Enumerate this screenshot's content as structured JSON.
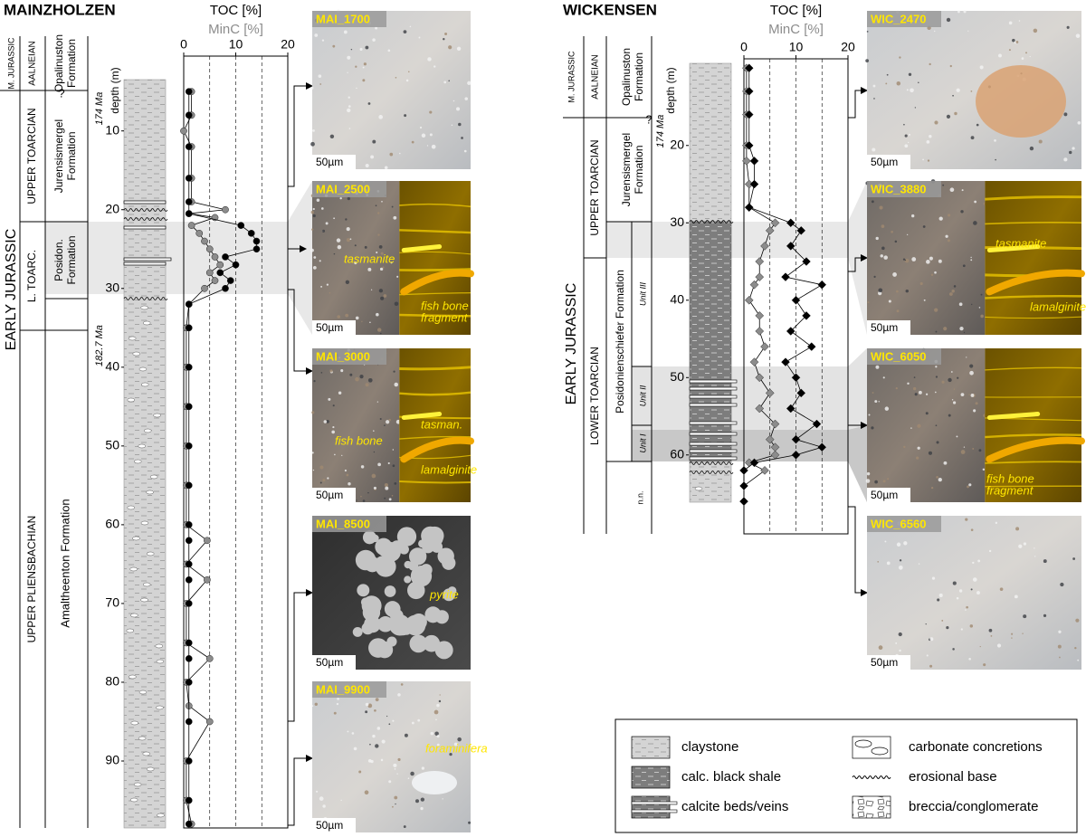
{
  "sites": [
    {
      "title": "MAINZHOLZEN",
      "strat": [
        "M. JURASSIC",
        "EARLY  JURASSIC",
        "AALNEIAN",
        "UPPER TOARCIAN",
        "L. TOARC.",
        "UPPER PLIENSBACHIAN",
        [
          "Opalinuston",
          "Formation"
        ],
        [
          "Jurensismergel",
          "Formation"
        ],
        [
          "Posidon.",
          "Formation"
        ],
        "Amaltheenton Formation"
      ],
      "uncertain": "?",
      "ages": [
        "174 Ma",
        "182.7 Ma"
      ],
      "depth_label": "depth (m)",
      "depth_lim": [
        0.5,
        98.5
      ],
      "depth_ticks": [
        10,
        20,
        30,
        40,
        50,
        60,
        70,
        80,
        90
      ],
      "xlim": [
        0,
        20
      ],
      "xticks": [
        0,
        10,
        20
      ],
      "dashed_lines": [
        5,
        10,
        15
      ],
      "marker": "circle",
      "series": [
        {
          "label": "TOC [%]",
          "color": "#000000",
          "depth": [
            5,
            8,
            12,
            16,
            19,
            20.5,
            22,
            23,
            24,
            25,
            26,
            27,
            28,
            29,
            30,
            32,
            35,
            40,
            45,
            50,
            55,
            60,
            62,
            65,
            67,
            70,
            75,
            77,
            80,
            85,
            90,
            95,
            98
          ],
          "values": [
            1,
            1,
            1,
            1,
            1,
            1,
            11,
            13,
            14,
            14,
            8,
            10,
            7,
            9,
            8,
            1,
            1,
            1,
            1,
            1,
            1,
            1,
            1,
            1,
            1,
            1,
            1,
            1,
            1,
            1,
            1,
            1,
            1
          ]
        },
        {
          "label": "MinC [%]",
          "color": "#8c8c8c",
          "depth": [
            5,
            8,
            10,
            12,
            16,
            19,
            20,
            20.5,
            21,
            22,
            23,
            24,
            25,
            26,
            27,
            28,
            29,
            30,
            32,
            35,
            40,
            45,
            50,
            55,
            60,
            62,
            65,
            67,
            70,
            75,
            77,
            80,
            83,
            85,
            90,
            95,
            98
          ],
          "values": [
            1.5,
            1.5,
            0,
            1.5,
            1.5,
            1.5,
            8,
            1,
            6,
            1.5,
            3,
            4,
            5,
            6,
            7,
            5,
            6,
            4,
            1,
            0.5,
            0.5,
            0.5,
            0.5,
            0.5,
            0.5,
            4.5,
            0.5,
            4.5,
            0.5,
            0.5,
            5,
            0.5,
            1,
            5,
            0.5,
            0.5,
            1.5
          ]
        }
      ],
      "photos": [
        {
          "id": "MAI_1700",
          "scale": "50µm",
          "notes": []
        },
        {
          "id": "MAI_2500",
          "scale": "50µm",
          "notes": [
            "tasmanite",
            [
              "fish bone",
              "fragment"
            ]
          ]
        },
        {
          "id": "MAI_3000",
          "scale": "50µm",
          "notes": [
            "tasman.",
            "fish bone",
            "lamalginite"
          ]
        },
        {
          "id": "MAI_8500",
          "scale": "50µm",
          "notes": [
            "pyrite"
          ]
        },
        {
          "id": "MAI_9900",
          "scale": "50µm",
          "notes": [
            "foraminifera"
          ]
        }
      ]
    },
    {
      "title": "WICKENSEN",
      "strat": [
        "M. JURASSIC",
        "EARLY  JURASSIC",
        "AALNEIAN",
        "UPPER TOARCIAN",
        "LOWER TOARCIAN",
        [
          "Opalinuston",
          "Formation"
        ],
        [
          "Jurensismergel",
          "Formation"
        ],
        "Posidonienschiefer Formation",
        "n.n.",
        "Unit III",
        "Unit II",
        "Unit I"
      ],
      "uncertain": "?",
      "ages": [
        "174 Ma"
      ],
      "depth_label": "depth (m)",
      "depth_lim": [
        8.8,
        70.2
      ],
      "depth_ticks": [
        20,
        30,
        40,
        50,
        60
      ],
      "xlim": [
        0,
        20
      ],
      "xticks": [
        0,
        10,
        20
      ],
      "dashed_lines": [
        5,
        10,
        15
      ],
      "marker": "diamond",
      "series": [
        {
          "label": "TOC [%]",
          "color": "#000000",
          "depth": [
            10,
            13,
            16,
            20,
            22,
            25,
            28,
            30,
            31,
            33,
            35,
            37,
            38,
            40,
            42,
            44,
            46,
            48,
            50,
            52,
            54,
            56,
            58,
            59,
            60,
            61,
            62,
            64,
            66
          ],
          "values": [
            1,
            1,
            1,
            1,
            2,
            2,
            1,
            9,
            11,
            9,
            12,
            8,
            15,
            10,
            12,
            9,
            13,
            8,
            10,
            11,
            9,
            14,
            10,
            15,
            10,
            2,
            0,
            0,
            0
          ]
        },
        {
          "label": "MinC [%]",
          "color": "#8c8c8c",
          "depth": [
            10,
            13,
            16,
            20,
            22,
            25,
            28,
            30,
            31,
            33,
            35,
            37,
            38,
            40,
            42,
            44,
            46,
            48,
            50,
            52,
            54,
            56,
            58,
            59,
            60,
            61,
            62,
            64,
            66
          ],
          "values": [
            0.5,
            0.5,
            0.5,
            0.5,
            0.5,
            1,
            1,
            6,
            5,
            4,
            3,
            3,
            2,
            1,
            3,
            3,
            4,
            2,
            3,
            5,
            3,
            6,
            5,
            6,
            6,
            1,
            4,
            0,
            0
          ]
        }
      ],
      "photos": [
        {
          "id": "WIC_2470",
          "scale": "50µm",
          "notes": []
        },
        {
          "id": "WIC_3880",
          "scale": "50µm",
          "notes": [
            "tasmanite",
            "lamalginite"
          ]
        },
        {
          "id": "WIC_6050",
          "scale": "50µm",
          "notes": [
            [
              "fish bone",
              "fragment"
            ]
          ]
        },
        {
          "id": "WIC_6560",
          "scale": "50µm",
          "notes": []
        }
      ]
    }
  ],
  "legend": [
    "claystone",
    "calc. black shale",
    "calcite beds/veins",
    "carbonate concretions",
    "erosional base",
    "breccia/conglomerate"
  ]
}
